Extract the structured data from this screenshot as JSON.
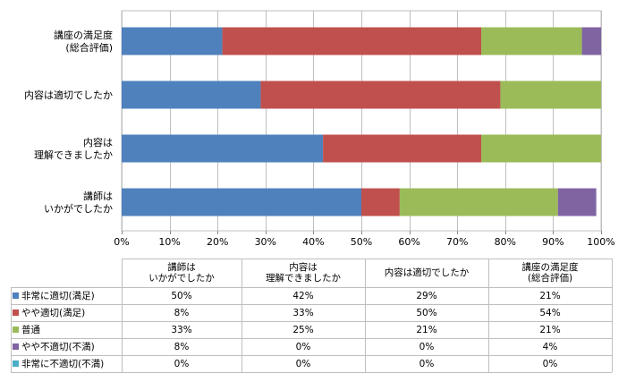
{
  "chart_data": {
    "type": "bar",
    "orientation": "horizontal",
    "stacked": "percent",
    "categories": [
      "講座の満足度\n(総合評価)",
      "内容は適切でしたか",
      "内容は\n理解できましたか",
      "講師は\nいかがでしたか"
    ],
    "series": [
      {
        "name": "非常に適切(満足)",
        "color": "#4F81BD",
        "values": [
          21,
          29,
          42,
          50
        ]
      },
      {
        "name": "やや適切(満足)",
        "color": "#C0504D",
        "values": [
          54,
          50,
          33,
          8
        ]
      },
      {
        "name": "普通",
        "color": "#9BBB59",
        "values": [
          21,
          21,
          25,
          33
        ]
      },
      {
        "name": "やや不適切(不満)",
        "color": "#8064A2",
        "values": [
          4,
          0,
          0,
          8
        ]
      },
      {
        "name": "非常に不適切(不満)",
        "color": "#4BACC6",
        "values": [
          0,
          0,
          0,
          0
        ]
      }
    ],
    "xlim": [
      0,
      100
    ],
    "xticks": [
      "0%",
      "10%",
      "20%",
      "30%",
      "40%",
      "50%",
      "60%",
      "70%",
      "80%",
      "90%",
      "100%"
    ],
    "grid": true,
    "legend": "data-table-below"
  },
  "table": {
    "headers": [
      "講師は\nいかがでしたか",
      "内容は\n理解できましたか",
      "内容は適切でしたか",
      "講座の満足度\n(総合評価)"
    ],
    "rows": [
      {
        "label": "非常に適切(満足)",
        "color": "#4F81BD",
        "cells": [
          "50%",
          "42%",
          "29%",
          "21%"
        ]
      },
      {
        "label": "やや適切(満足)",
        "color": "#C0504D",
        "cells": [
          "8%",
          "33%",
          "50%",
          "54%"
        ]
      },
      {
        "label": "普通",
        "color": "#9BBB59",
        "cells": [
          "33%",
          "25%",
          "21%",
          "21%"
        ]
      },
      {
        "label": "やや不適切(不満)",
        "color": "#8064A2",
        "cells": [
          "8%",
          "0%",
          "0%",
          "4%"
        ]
      },
      {
        "label": "非常に不適切(不満)",
        "color": "#4BACC6",
        "cells": [
          "0%",
          "0%",
          "0%",
          "0%"
        ]
      }
    ]
  }
}
